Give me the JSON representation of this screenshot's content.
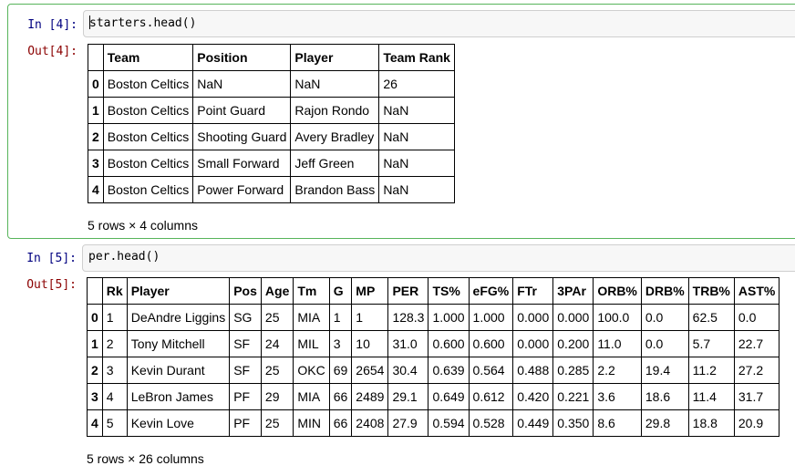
{
  "cells": [
    {
      "in_prompt": "In [4]:",
      "code": "starters.head()",
      "out_prompt": "Out[4]:",
      "columns": [
        "",
        "Team",
        "Position",
        "Player",
        "Team Rank"
      ],
      "rows": [
        [
          "0",
          "Boston Celtics",
          "NaN",
          "NaN",
          "26"
        ],
        [
          "1",
          "Boston Celtics",
          "Point Guard",
          "Rajon Rondo",
          "NaN"
        ],
        [
          "2",
          "Boston Celtics",
          "Shooting Guard",
          "Avery Bradley",
          "NaN"
        ],
        [
          "3",
          "Boston Celtics",
          "Small Forward",
          "Jeff Green",
          "NaN"
        ],
        [
          "4",
          "Boston Celtics",
          "Power Forward",
          "Brandon Bass",
          "NaN"
        ]
      ],
      "shape_note": "5 rows × 4 columns"
    },
    {
      "in_prompt": "In [5]:",
      "code": "per.head()",
      "out_prompt": "Out[5]:",
      "columns": [
        "",
        "Rk",
        "Player",
        "Pos",
        "Age",
        "Tm",
        "G",
        "MP",
        "PER",
        "TS%",
        "eFG%",
        "FTr",
        "3PAr",
        "ORB%",
        "DRB%",
        "TRB%",
        "AST%"
      ],
      "rows": [
        [
          "0",
          "1",
          "DeAndre Liggins",
          "SG",
          "25",
          "MIA",
          "1",
          "1",
          "128.3",
          "1.000",
          "1.000",
          "0.000",
          "0.000",
          "100.0",
          "0.0",
          "62.5",
          "0.0"
        ],
        [
          "1",
          "2",
          "Tony Mitchell",
          "SF",
          "24",
          "MIL",
          "3",
          "10",
          "31.0",
          "0.600",
          "0.600",
          "0.000",
          "0.200",
          "11.0",
          "0.0",
          "5.7",
          "22.7"
        ],
        [
          "2",
          "3",
          "Kevin Durant",
          "SF",
          "25",
          "OKC",
          "69",
          "2654",
          "30.4",
          "0.639",
          "0.564",
          "0.488",
          "0.285",
          "2.2",
          "19.4",
          "11.2",
          "27.2"
        ],
        [
          "3",
          "4",
          "LeBron James",
          "PF",
          "29",
          "MIA",
          "66",
          "2489",
          "29.1",
          "0.649",
          "0.612",
          "0.420",
          "0.221",
          "3.6",
          "18.6",
          "11.4",
          "31.7"
        ],
        [
          "4",
          "5",
          "Kevin Love",
          "PF",
          "25",
          "MIN",
          "66",
          "2408",
          "27.9",
          "0.594",
          "0.528",
          "0.449",
          "0.350",
          "8.6",
          "29.8",
          "18.8",
          "20.9"
        ]
      ],
      "shape_note": "5 rows × 26 columns"
    }
  ]
}
